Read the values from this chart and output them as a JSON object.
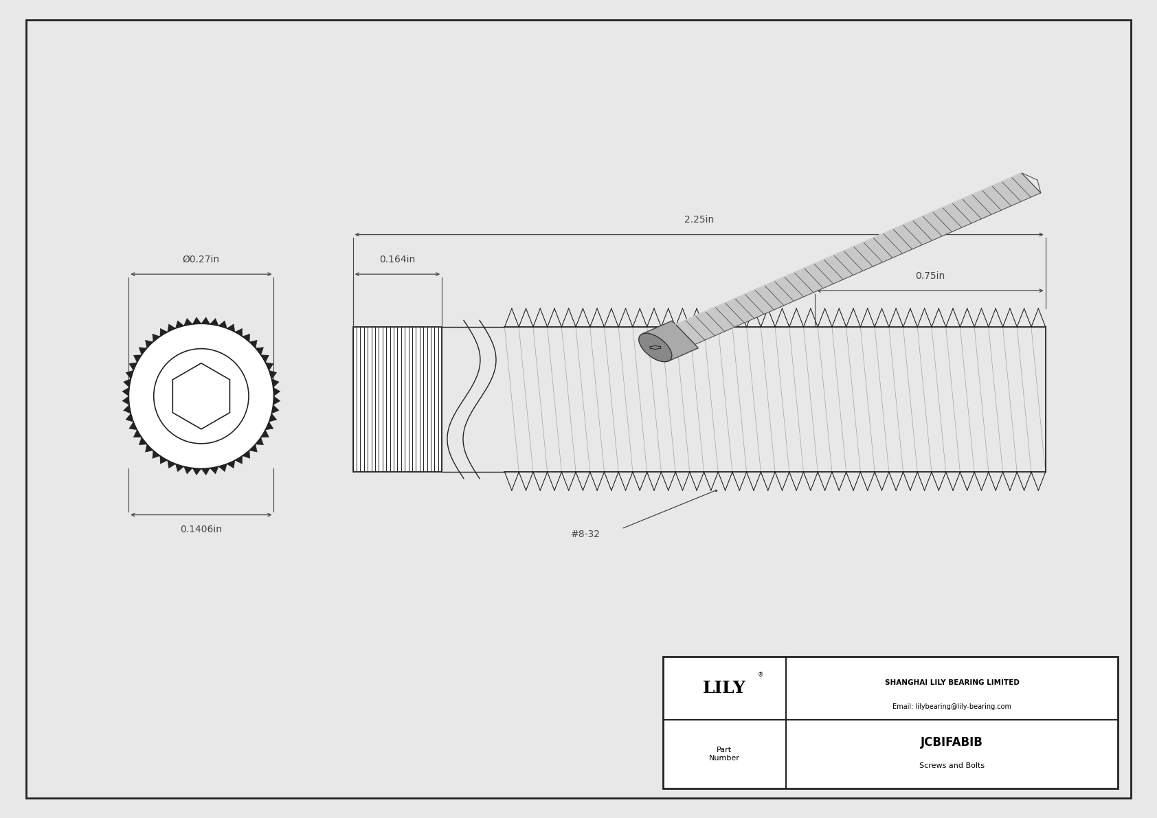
{
  "bg_color": "#e8e8e8",
  "drawing_bg": "#ffffff",
  "border_color": "#222222",
  "line_color": "#222222",
  "dim_color": "#444444",
  "title": "JCBIFABIB",
  "subtitle": "Screws and Bolts",
  "company": "SHANGHAI LILY BEARING LIMITED",
  "email": "Email: lilybearing@lily-bearing.com",
  "part_label": "Part\nNumber",
  "dim_total_length": "2.25in",
  "dim_head_length": "0.164in",
  "dim_thread_length": "0.75in",
  "dim_outer_diameter": "Ø0.27in",
  "dim_head_depth": "0.1406in",
  "thread_label": "#8-32"
}
